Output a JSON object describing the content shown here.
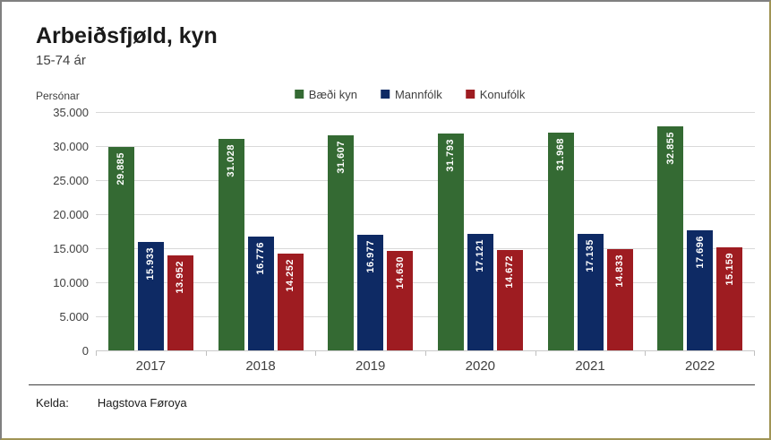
{
  "chart_data": {
    "type": "bar",
    "title": "Arbeiðsfjøld, kyn",
    "subtitle": "15-74 ár",
    "ylabel": "Persónar",
    "xlabel": "",
    "categories": [
      "2017",
      "2018",
      "2019",
      "2020",
      "2021",
      "2022"
    ],
    "series": [
      {
        "name": "Bæði kyn",
        "color": "#346A33",
        "values": [
          29885,
          31028,
          31607,
          31793,
          31968,
          32855
        ]
      },
      {
        "name": "Mannfólk",
        "color": "#0E2A64",
        "values": [
          15933,
          16776,
          16977,
          17121,
          17135,
          17696
        ]
      },
      {
        "name": "Konufólk",
        "color": "#9E1C21",
        "values": [
          13952,
          14252,
          14630,
          14672,
          14833,
          15159
        ]
      }
    ],
    "value_labels": [
      [
        "29.885",
        "31.028",
        "31.607",
        "31.793",
        "31.968",
        "32.855"
      ],
      [
        "15.933",
        "16.776",
        "16.977",
        "17.121",
        "17.135",
        "17.696"
      ],
      [
        "13.952",
        "14.252",
        "14.630",
        "14.672",
        "14.833",
        "15.159"
      ]
    ],
    "ylim": [
      0,
      35000
    ],
    "ytick_step": 5000,
    "ytick_labels": [
      "0",
      "5.000",
      "10.000",
      "15.000",
      "20.000",
      "25.000",
      "30.000",
      "35.000"
    ],
    "legend_position": "top-center",
    "grid": true
  },
  "footer": {
    "source_label": "Kelda:",
    "source_value": "Hagstova Føroya"
  },
  "frame": {
    "border_top_left_color": "#808080",
    "border_bottom_right_color": "#A09455",
    "background": "#ffffff"
  }
}
